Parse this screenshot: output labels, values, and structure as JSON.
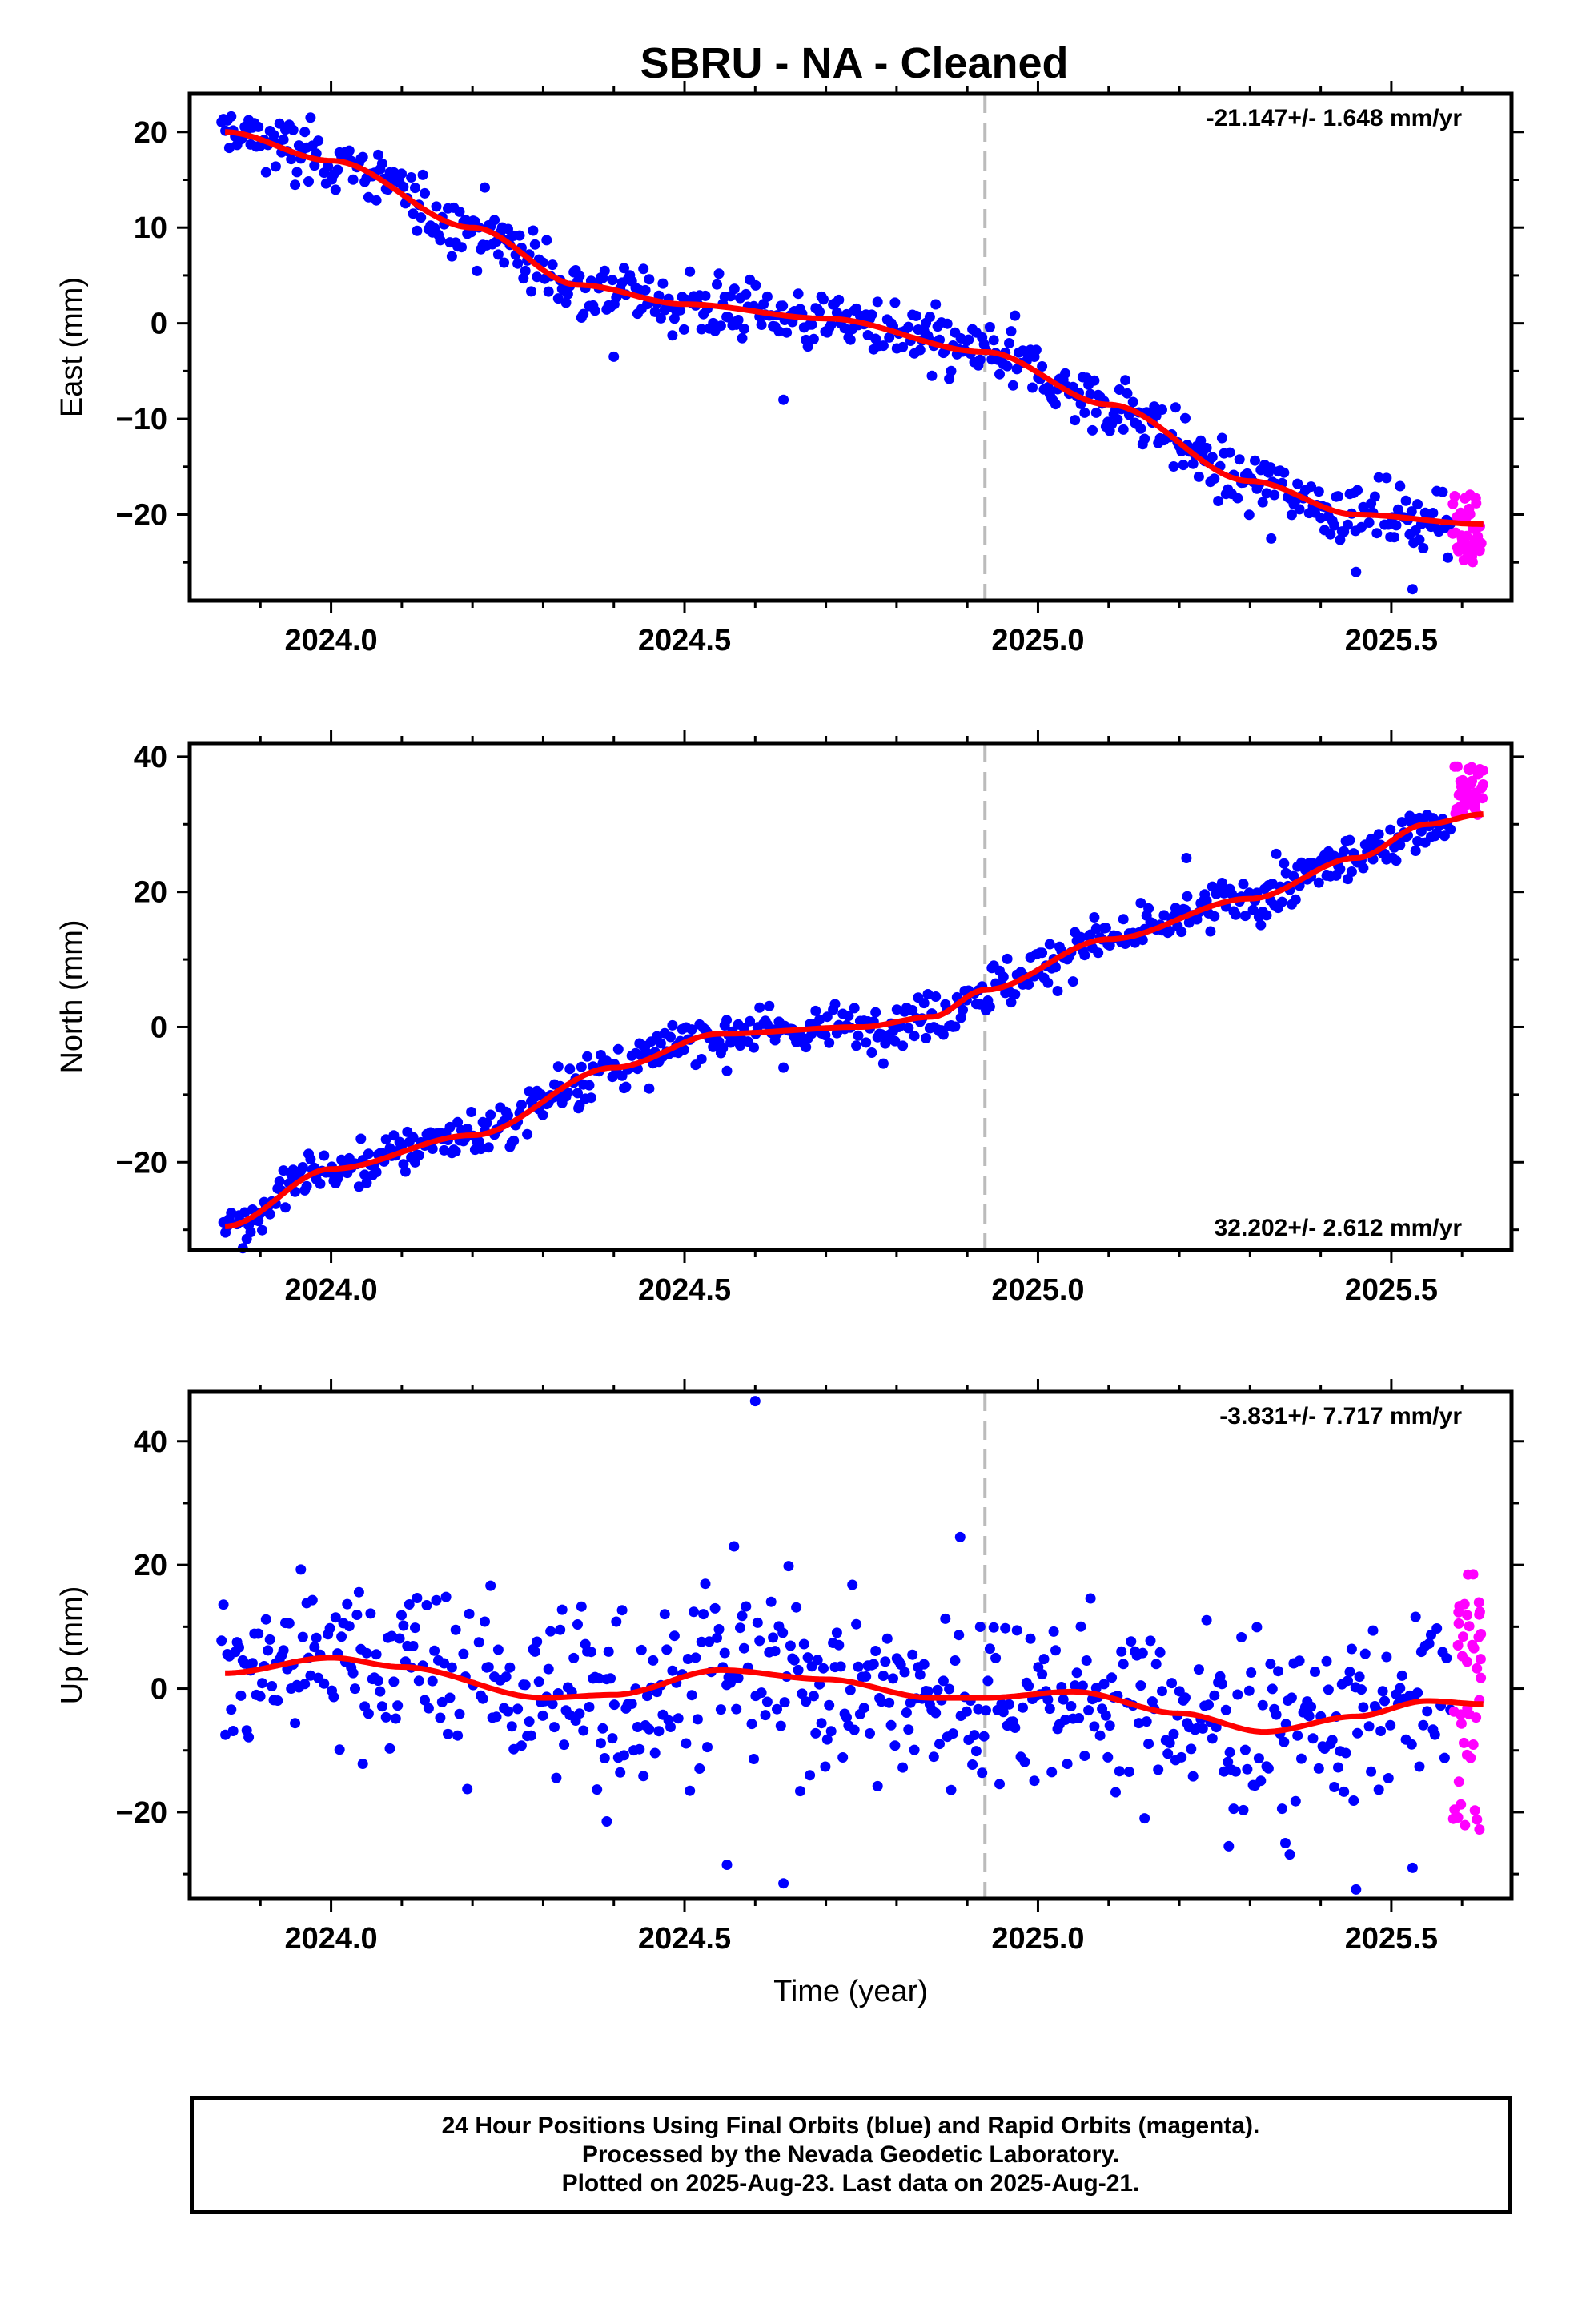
{
  "title": "SBRU  - NA - Cleaned",
  "colors": {
    "final": "#0000ff",
    "rapid": "#ff00ff",
    "model": "#ff0000",
    "marker": "#bbbbbb"
  },
  "chart_data": [
    {
      "type": "scatter",
      "component": "east",
      "ylabel": "East (mm)",
      "xlabel": "",
      "xlim": [
        2023.8,
        2025.67
      ],
      "ylim": [
        -29,
        24
      ],
      "xticks": [
        2024.0,
        2024.5,
        2025.0,
        2025.5
      ],
      "xtick_labels": [
        "2024.0",
        "2024.5",
        "2025.0",
        "2025.5"
      ],
      "yticks": [
        -20,
        -10,
        0,
        10,
        20
      ],
      "ytick_labels": [
        "−20",
        "−10",
        "0",
        "10",
        "20"
      ],
      "rate": "-21.147+/- 1.648 mm/yr",
      "rate_position": "top-right",
      "marker_x": 2024.925,
      "trend": {
        "x": [
          2023.85,
          2024.0,
          2024.2,
          2024.35,
          2024.5,
          2024.7,
          2024.925,
          2025.1,
          2025.3,
          2025.45,
          2025.63
        ],
        "y": [
          20.0,
          17.0,
          10.0,
          4.0,
          2.0,
          0.5,
          -3.0,
          -8.5,
          -16.5,
          -20.0,
          -21.0
        ]
      },
      "scatter_sd": 1.6,
      "outliers": [
        [
          2024.4,
          -3.5
        ],
        [
          2024.64,
          -8.0
        ],
        [
          2024.85,
          -5.5
        ],
        [
          2025.33,
          -22.5
        ],
        [
          2025.45,
          -26.0
        ],
        [
          2025.53,
          -27.8
        ],
        [
          2025.58,
          -24.5
        ]
      ],
      "rapid": {
        "x_start": 2025.59,
        "x_end": 2025.63,
        "center": -21.5,
        "spread": 4.5
      }
    },
    {
      "type": "scatter",
      "component": "north",
      "ylabel": "North (mm)",
      "xlabel": "",
      "xlim": [
        2023.8,
        2025.67
      ],
      "ylim": [
        -33,
        42
      ],
      "xticks": [
        2024.0,
        2024.5,
        2025.0,
        2025.5
      ],
      "xtick_labels": [
        "2024.0",
        "2024.5",
        "2025.0",
        "2025.5"
      ],
      "yticks": [
        -20,
        0,
        20,
        40
      ],
      "ytick_labels": [
        "−20",
        "0",
        "20",
        "40"
      ],
      "rate": "32.202+/- 2.612 mm/yr",
      "rate_position": "bottom-right",
      "marker_x": 2024.925,
      "trend": {
        "x": [
          2023.85,
          2024.0,
          2024.2,
          2024.4,
          2024.55,
          2024.75,
          2024.85,
          2024.925,
          2025.1,
          2025.3,
          2025.45,
          2025.55,
          2025.63
        ],
        "y": [
          -29.5,
          -21.0,
          -16.0,
          -6.0,
          -1.0,
          0.0,
          1.5,
          5.5,
          13.0,
          19.0,
          25.0,
          30.0,
          31.5
        ]
      },
      "scatter_sd": 1.8,
      "outliers": [
        [
          2024.56,
          -6.5
        ],
        [
          2024.64,
          -6.0
        ],
        [
          2025.21,
          25.0
        ],
        [
          2024.35,
          -12.0
        ]
      ],
      "rapid": {
        "x_start": 2025.59,
        "x_end": 2025.63,
        "center": 35.0,
        "spread": 4.5
      }
    },
    {
      "type": "scatter",
      "component": "up",
      "ylabel": "Up (mm)",
      "xlabel": "Time (year)",
      "xlim": [
        2023.8,
        2025.67
      ],
      "ylim": [
        -34,
        48
      ],
      "xticks": [
        2024.0,
        2024.5,
        2025.0,
        2025.5
      ],
      "xtick_labels": [
        "2024.0",
        "2024.5",
        "2025.0",
        "2025.5"
      ],
      "yticks": [
        -20,
        0,
        20,
        40
      ],
      "ytick_labels": [
        "−20",
        "0",
        "20",
        "40"
      ],
      "rate": "-3.831+/- 7.717 mm/yr",
      "rate_position": "top-right",
      "marker_x": 2024.925,
      "trend": {
        "x": [
          2023.85,
          2024.0,
          2024.1,
          2024.3,
          2024.4,
          2024.55,
          2024.7,
          2024.85,
          2024.925,
          2025.05,
          2025.2,
          2025.32,
          2025.45,
          2025.55,
          2025.63
        ],
        "y": [
          2.5,
          5.0,
          3.5,
          -1.5,
          -1.0,
          3.0,
          1.5,
          -1.5,
          -1.5,
          -0.5,
          -4.0,
          -7.0,
          -4.5,
          -2.0,
          -2.5
        ]
      },
      "scatter_sd": 7.0,
      "outliers": [
        [
          2024.6,
          46.5
        ],
        [
          2024.56,
          -28.5
        ],
        [
          2024.64,
          -31.5
        ],
        [
          2024.39,
          -21.5
        ],
        [
          2024.57,
          23.0
        ],
        [
          2024.89,
          24.5
        ],
        [
          2025.45,
          -32.5
        ],
        [
          2025.53,
          -29.0
        ],
        [
          2025.27,
          -25.5
        ],
        [
          2025.35,
          -25.0
        ]
      ],
      "rapid": {
        "x_start": 2025.59,
        "x_end": 2025.63,
        "center": -2.0,
        "spread": 26.0
      }
    }
  ],
  "footer": {
    "line1": "24 Hour Positions Using Final Orbits (blue) and Rapid Orbits (magenta).",
    "line2": "Processed by the Nevada Geodetic Laboratory.",
    "line3": "Plotted on 2025-Aug-23. Last data on 2025-Aug-21."
  }
}
